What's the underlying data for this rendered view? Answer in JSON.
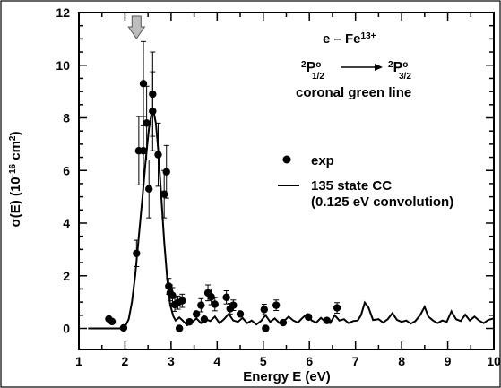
{
  "chart_data": {
    "type": "scatter",
    "xlabel": "Energy E (eV)",
    "ylabel_parts": {
      "base": "σ(E) (10",
      "exp1": "-16",
      "mid": " cm",
      "exp2": "2",
      "end": ")"
    },
    "xlim": [
      1,
      10
    ],
    "ylim": [
      -0.8,
      12
    ],
    "xticks": [
      1,
      2,
      3,
      4,
      5,
      6,
      7,
      8,
      9,
      10
    ],
    "yticks": [
      0,
      2,
      4,
      6,
      8,
      10,
      12
    ],
    "grid": false,
    "legend_placement": "right-middle",
    "annotation": {
      "line1_base": "e – Fe",
      "line1_sup": "13+",
      "ion_from": {
        "sup": "2",
        "letter": "P",
        "sup_o": "o",
        "sub": "1/2"
      },
      "ion_to": {
        "sup": "2",
        "letter": "P",
        "sup_o": "o",
        "sub": "3/2"
      },
      "line3": "coronal green line",
      "arrow_marker_x": 2.25
    },
    "series": [
      {
        "name": "exp",
        "kind": "points",
        "color": "#000000",
        "points": [
          {
            "x": 1.65,
            "y": 0.36
          },
          {
            "x": 1.72,
            "y": 0.26
          },
          {
            "x": 1.97,
            "y": 0.02
          },
          {
            "x": 2.25,
            "y": 2.85,
            "err": 0.5
          },
          {
            "x": 2.3,
            "y": 6.75,
            "err": 1.3
          },
          {
            "x": 2.4,
            "y": 9.3,
            "err": 1.6
          },
          {
            "x": 2.4,
            "y": 6.75,
            "err": 1.3
          },
          {
            "x": 2.47,
            "y": 7.8,
            "err": 1.4
          },
          {
            "x": 2.52,
            "y": 5.3,
            "err": 1.1
          },
          {
            "x": 2.6,
            "y": 8.9,
            "err": 1.6
          },
          {
            "x": 2.6,
            "y": 8.25,
            "err": 1.5
          },
          {
            "x": 2.72,
            "y": 6.6,
            "err": 1.2
          },
          {
            "x": 2.85,
            "y": 5.1,
            "err": 0.9
          },
          {
            "x": 2.9,
            "y": 5.95,
            "err": 1.0
          },
          {
            "x": 2.95,
            "y": 1.6,
            "err": 0.3
          },
          {
            "x": 2.98,
            "y": 1.35,
            "err": 0.3
          },
          {
            "x": 3.03,
            "y": 1.25,
            "err": 0.3
          },
          {
            "x": 3.08,
            "y": 0.9,
            "err": 0.25
          },
          {
            "x": 3.15,
            "y": 0.98,
            "err": 0.25
          },
          {
            "x": 3.18,
            "y": 0.0
          },
          {
            "x": 3.24,
            "y": 1.05,
            "err": 0.25
          },
          {
            "x": 3.4,
            "y": 0.25
          },
          {
            "x": 3.55,
            "y": 0.55
          },
          {
            "x": 3.65,
            "y": 0.88,
            "err": 0.25
          },
          {
            "x": 3.72,
            "y": 0.35
          },
          {
            "x": 3.8,
            "y": 1.35,
            "err": 0.3
          },
          {
            "x": 3.87,
            "y": 1.2,
            "err": 0.3
          },
          {
            "x": 3.95,
            "y": 0.92,
            "err": 0.25
          },
          {
            "x": 4.2,
            "y": 1.18,
            "err": 0.25
          },
          {
            "x": 4.28,
            "y": 0.75,
            "err": 0.2
          },
          {
            "x": 4.35,
            "y": 0.88,
            "err": 0.2
          },
          {
            "x": 4.5,
            "y": 0.55
          },
          {
            "x": 5.02,
            "y": 0.72,
            "err": 0.2
          },
          {
            "x": 5.05,
            "y": 0.0
          },
          {
            "x": 5.28,
            "y": 0.88,
            "err": 0.2
          },
          {
            "x": 5.43,
            "y": 0.22
          },
          {
            "x": 5.98,
            "y": 0.43
          },
          {
            "x": 6.38,
            "y": 0.3
          },
          {
            "x": 6.6,
            "y": 0.78,
            "err": 0.2
          }
        ]
      },
      {
        "name": "135 state CC",
        "name_line2": "(0.125 eV convolution)",
        "kind": "line",
        "color": "#000000",
        "points": [
          [
            1.2,
            0.0
          ],
          [
            1.6,
            0.0
          ],
          [
            1.9,
            0.0
          ],
          [
            2.0,
            0.05
          ],
          [
            2.08,
            0.35
          ],
          [
            2.15,
            1.0
          ],
          [
            2.22,
            2.0
          ],
          [
            2.3,
            3.5
          ],
          [
            2.38,
            5.0
          ],
          [
            2.45,
            6.4
          ],
          [
            2.52,
            7.6
          ],
          [
            2.58,
            8.2
          ],
          [
            2.62,
            8.25
          ],
          [
            2.67,
            7.8
          ],
          [
            2.72,
            6.8
          ],
          [
            2.78,
            5.2
          ],
          [
            2.85,
            3.3
          ],
          [
            2.92,
            1.8
          ],
          [
            2.98,
            0.9
          ],
          [
            3.05,
            0.45
          ],
          [
            3.1,
            0.3
          ],
          [
            3.18,
            0.42
          ],
          [
            3.25,
            0.3
          ],
          [
            3.35,
            0.12
          ],
          [
            3.45,
            0.22
          ],
          [
            3.55,
            0.38
          ],
          [
            3.65,
            0.2
          ],
          [
            3.75,
            0.35
          ],
          [
            3.85,
            0.28
          ],
          [
            3.95,
            0.45
          ],
          [
            4.05,
            0.2
          ],
          [
            4.15,
            0.35
          ],
          [
            4.25,
            0.55
          ],
          [
            4.35,
            0.3
          ],
          [
            4.45,
            0.25
          ],
          [
            4.55,
            0.4
          ],
          [
            4.65,
            0.2
          ],
          [
            4.75,
            0.3
          ],
          [
            4.85,
            0.15
          ],
          [
            4.95,
            0.28
          ],
          [
            5.05,
            0.5
          ],
          [
            5.15,
            0.25
          ],
          [
            5.25,
            0.38
          ],
          [
            5.35,
            0.2
          ],
          [
            5.45,
            0.28
          ],
          [
            5.55,
            0.45
          ],
          [
            5.65,
            0.3
          ],
          [
            5.75,
            0.22
          ],
          [
            5.85,
            0.4
          ],
          [
            5.95,
            0.55
          ],
          [
            6.05,
            0.3
          ],
          [
            6.15,
            0.22
          ],
          [
            6.25,
            0.4
          ],
          [
            6.35,
            0.25
          ],
          [
            6.45,
            0.2
          ],
          [
            6.55,
            0.5
          ],
          [
            6.65,
            0.3
          ],
          [
            6.75,
            0.35
          ],
          [
            6.85,
            0.2
          ],
          [
            6.95,
            0.28
          ],
          [
            7.05,
            0.3
          ],
          [
            7.12,
            0.5
          ],
          [
            7.2,
            0.98
          ],
          [
            7.28,
            0.8
          ],
          [
            7.38,
            0.32
          ],
          [
            7.5,
            0.35
          ],
          [
            7.6,
            0.22
          ],
          [
            7.7,
            0.35
          ],
          [
            7.8,
            0.58
          ],
          [
            7.9,
            0.32
          ],
          [
            8.0,
            0.25
          ],
          [
            8.1,
            0.3
          ],
          [
            8.2,
            0.18
          ],
          [
            8.3,
            0.28
          ],
          [
            8.4,
            0.5
          ],
          [
            8.5,
            0.82
          ],
          [
            8.58,
            0.45
          ],
          [
            8.68,
            0.3
          ],
          [
            8.78,
            0.2
          ],
          [
            8.88,
            0.3
          ],
          [
            8.98,
            0.25
          ],
          [
            9.08,
            0.65
          ],
          [
            9.18,
            0.35
          ],
          [
            9.28,
            0.28
          ],
          [
            9.38,
            0.52
          ],
          [
            9.48,
            0.3
          ],
          [
            9.58,
            0.45
          ],
          [
            9.68,
            0.3
          ],
          [
            9.78,
            0.2
          ],
          [
            9.88,
            0.32
          ],
          [
            10.0,
            0.38
          ]
        ]
      }
    ]
  }
}
